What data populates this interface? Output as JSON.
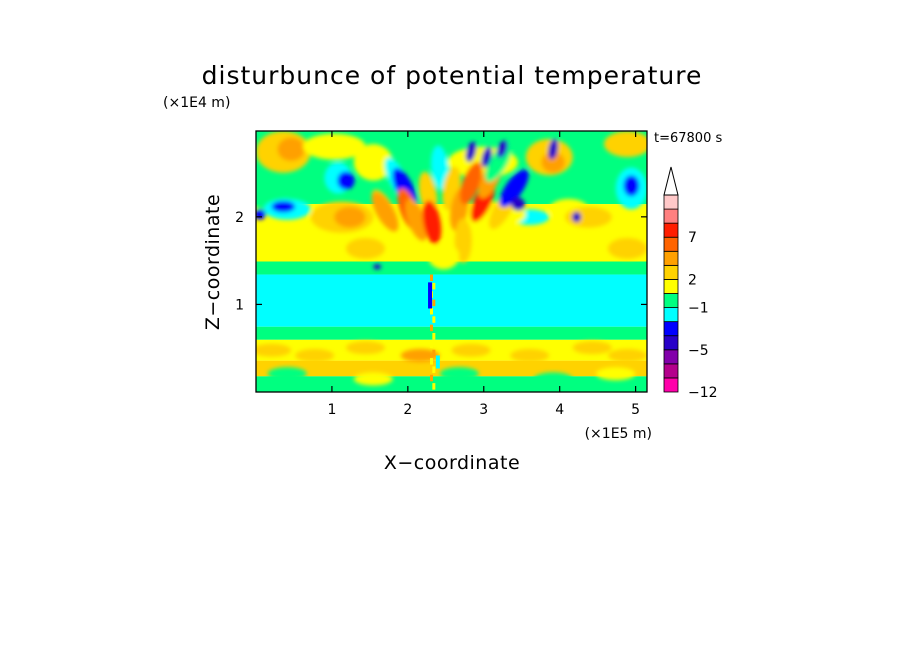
{
  "chart_data": {
    "type": "heatmap",
    "title": "disturbunce of potential temperature",
    "xlabel": "X−coordinate",
    "ylabel": "Z−coordinate",
    "x_unit": "(×1E5 m)",
    "y_unit": "(×1E4 m)",
    "time_label": "t=67800 s",
    "xlim": [
      0,
      5.15
    ],
    "ylim": [
      0,
      2.98
    ],
    "x_ticks": [
      {
        "value": 1,
        "label": "1"
      },
      {
        "value": 2,
        "label": "2"
      },
      {
        "value": 3,
        "label": "3"
      },
      {
        "value": 4,
        "label": "4"
      },
      {
        "value": 5,
        "label": "5"
      }
    ],
    "y_ticks": [
      {
        "value": 1,
        "label": "1"
      },
      {
        "value": 2,
        "label": "2"
      }
    ],
    "colorbar": {
      "levels": [
        {
          "color": "#ff00aa"
        },
        {
          "color": "#b4008c"
        },
        {
          "color": "#8200aa"
        },
        {
          "color": "#2800c8"
        },
        {
          "color": "#0000ff"
        },
        {
          "color": "#00ffff"
        },
        {
          "color": "#00ff80"
        },
        {
          "color": "#ffff00"
        },
        {
          "color": "#ffd200"
        },
        {
          "color": "#ffa000"
        },
        {
          "color": "#ff6400"
        },
        {
          "color": "#ff1e00"
        },
        {
          "color": "#ff8080"
        },
        {
          "color": "#ffc8c8"
        }
      ],
      "tick_labels": [
        {
          "at_boundary": 0,
          "label": "−12"
        },
        {
          "at_boundary": 3,
          "label": "−5"
        },
        {
          "at_boundary": 6,
          "label": "−1"
        },
        {
          "at_boundary": 8,
          "label": "2"
        },
        {
          "at_boundary": 11,
          "label": "7"
        }
      ],
      "extend": "max"
    },
    "field_colors": {
      "magenta": "#ff00aa",
      "navy": "#2800c8",
      "blue": "#0000ff",
      "cyan": "#00ffff",
      "green": "#00ff80",
      "yellow": "#ffff00",
      "gold": "#ffd200",
      "orange": "#ffa000",
      "dark_orange": "#ff6400",
      "red": "#ff1e00"
    }
  }
}
